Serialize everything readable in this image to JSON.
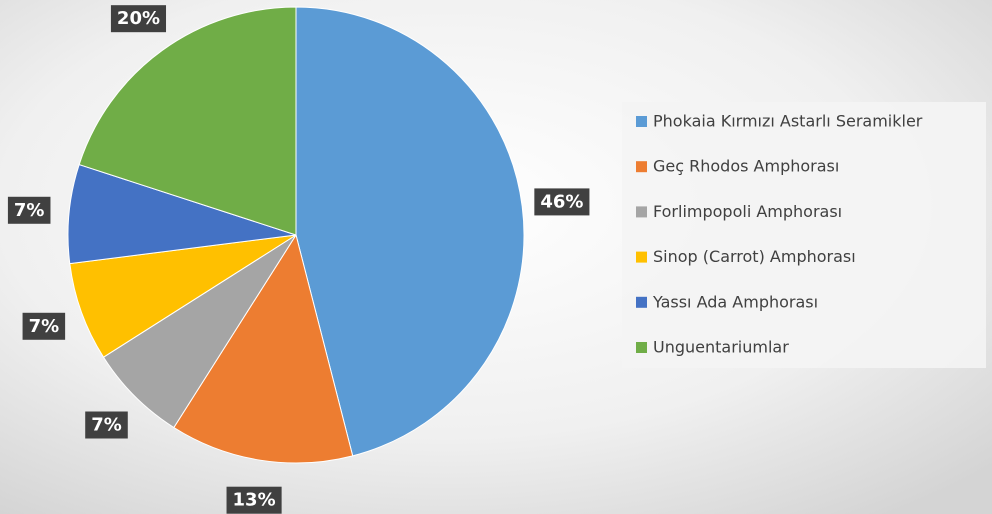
{
  "chart_data": {
    "type": "pie",
    "categories": [
      "Phokaia Kırmızı Astarlı Seramikler",
      "Geç Rhodos Amphorası",
      "Forlimpopoli Amphorası",
      "Sinop (Carrot) Amphorası",
      "Yassı Ada Amphorası",
      "Unguentariumlar"
    ],
    "values": [
      46,
      13,
      7,
      7,
      7,
      20
    ],
    "value_labels": [
      "46%",
      "13%",
      "7%",
      "7%",
      "7%",
      "20%"
    ],
    "colors": [
      "#5b9bd5",
      "#ed7d31",
      "#a5a5a5",
      "#ffc000",
      "#4472c4",
      "#70ad47"
    ],
    "legend": "right"
  }
}
